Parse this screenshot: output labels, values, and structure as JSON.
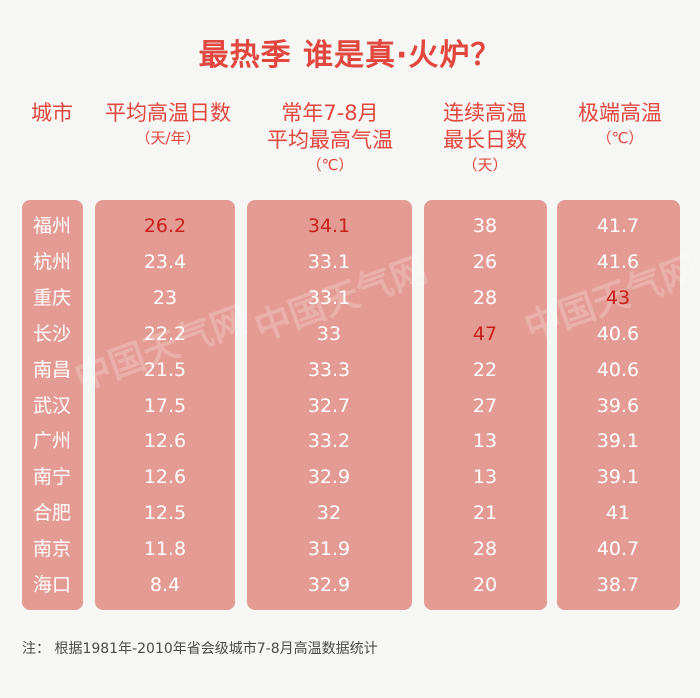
{
  "title": "最热季 谁是真·火炉？",
  "headers": {
    "city": "城市",
    "avg_days": [
      "平均高温日数",
      "（天/年）"
    ],
    "avg_max": [
      "常年7-8月",
      "平均最高气温",
      "（℃）"
    ],
    "consec": [
      "连续高温",
      "最长日数",
      "（天）"
    ],
    "extreme": [
      "极端高温",
      "（℃）"
    ]
  },
  "watermark": "中国天气网",
  "footnote": "注： 根据1981年-2010年省会级城市7-8月高温数据统计",
  "highlight_color": "#c9201c",
  "chart_data": {
    "type": "table",
    "title": "最热季 谁是真·火炉？",
    "columns": [
      "城市",
      "平均高温日数（天/年）",
      "常年7-8月平均最高气温（℃）",
      "连续高温最长日数（天）",
      "极端高温（℃）"
    ],
    "rows": [
      [
        "福州",
        "26.2",
        "34.1",
        "38",
        "41.7"
      ],
      [
        "杭州",
        "23.4",
        "33.1",
        "26",
        "41.6"
      ],
      [
        "重庆",
        "23",
        "33.1",
        "28",
        "43"
      ],
      [
        "长沙",
        "22.2",
        "33",
        "47",
        "40.6"
      ],
      [
        "南昌",
        "21.5",
        "33.3",
        "22",
        "40.6"
      ],
      [
        "武汉",
        "17.5",
        "32.7",
        "27",
        "39.6"
      ],
      [
        "广州",
        "12.6",
        "33.2",
        "13",
        "39.1"
      ],
      [
        "南宁",
        "12.6",
        "32.9",
        "13",
        "39.1"
      ],
      [
        "合肥",
        "12.5",
        "32",
        "21",
        "41"
      ],
      [
        "南京",
        "11.8",
        "31.9",
        "28",
        "40.7"
      ],
      [
        "海口",
        "8.4",
        "32.9",
        "20",
        "38.7"
      ]
    ],
    "highlighted": [
      [
        0,
        1
      ],
      [
        0,
        2
      ],
      [
        2,
        4
      ],
      [
        3,
        3
      ]
    ]
  }
}
